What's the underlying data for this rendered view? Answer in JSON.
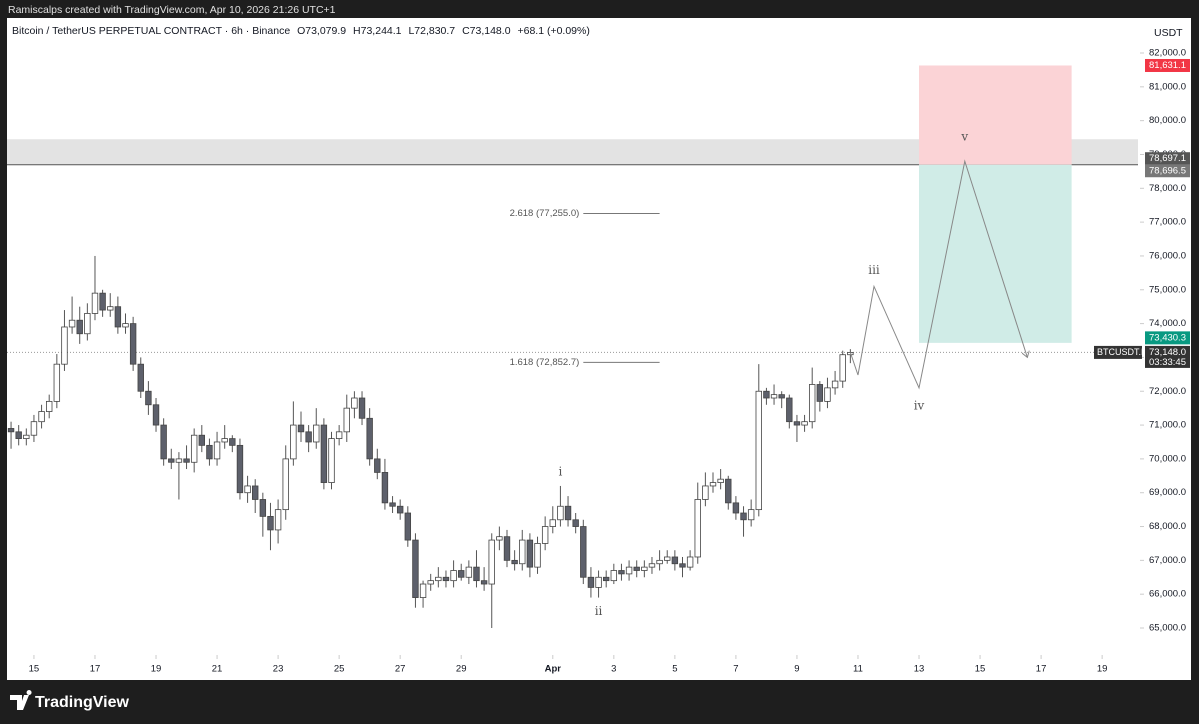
{
  "header": {
    "watermark": "Ramiscalps created with TradingView.com, Apr 10, 2026 21:26 UTC+1"
  },
  "footer": {
    "brand": "TradingView"
  },
  "chart_data": {
    "type": "candlestick",
    "title": "Bitcoin / TetherUS PERPETUAL CONTRACT · 6h · Binance",
    "ohlc_labels": [
      "O73,079.9",
      "H73,244.1",
      "L72,830.7",
      "C73,148.0",
      "+68.1 (+0.09%)"
    ],
    "currency": "USDT",
    "open": [
      70900,
      70800,
      70600,
      70700,
      71100,
      71400,
      71700,
      72800,
      73900,
      74100,
      73700,
      74300,
      74900,
      74400,
      74500,
      73900,
      74000,
      72800,
      72000,
      71600,
      71000,
      70000,
      69900,
      70000,
      69900,
      70700,
      70400,
      70000,
      70500,
      70600,
      70400,
      69000,
      69200,
      68800,
      68300,
      67900,
      68500,
      70000,
      71000,
      70800,
      70500,
      71000,
      69300,
      70600,
      70800,
      71500,
      71800,
      71200,
      70000,
      69600,
      68700,
      68600,
      68400,
      67600,
      65900,
      66300,
      66400,
      66500,
      66400,
      66700,
      66500,
      66800,
      66400,
      66300,
      67600,
      67700,
      67000,
      66900,
      67600,
      66800,
      67500,
      68000,
      68200,
      68600,
      68200,
      68000,
      66500,
      66200,
      66500,
      66400,
      66700,
      66600,
      66800,
      66700,
      66800,
      66900,
      67000,
      67100,
      66900,
      66800,
      67100,
      68800,
      69200,
      69300,
      69400,
      68700,
      68400,
      68200,
      68500,
      72000,
      71800,
      71900,
      71800,
      71100,
      71000,
      71100,
      72200,
      71700,
      72100,
      72300,
      73079.9
    ],
    "high": [
      71100,
      71000,
      70900,
      71300,
      71600,
      71900,
      73100,
      74400,
      74800,
      74500,
      74600,
      76000,
      75000,
      74900,
      74800,
      74300,
      74200,
      73000,
      72300,
      71800,
      71200,
      70300,
      70200,
      70400,
      70900,
      71000,
      70600,
      70800,
      71000,
      70700,
      70600,
      69500,
      69400,
      69000,
      68700,
      68800,
      70400,
      71700,
      71400,
      71000,
      71500,
      71200,
      70800,
      71000,
      71900,
      72000,
      72000,
      71500,
      70300,
      70000,
      68900,
      68800,
      68600,
      67800,
      66400,
      66600,
      66800,
      66700,
      67000,
      66900,
      67000,
      67300,
      66800,
      67800,
      68000,
      67900,
      67300,
      67900,
      67800,
      67700,
      68300,
      68600,
      69200,
      68900,
      68400,
      68200,
      66800,
      66700,
      66700,
      66900,
      66900,
      67000,
      67000,
      67000,
      67100,
      67300,
      67300,
      67300,
      67100,
      67300,
      69300,
      69600,
      69600,
      69700,
      69500,
      68900,
      68600,
      68800,
      72800,
      72100,
      72200,
      72000,
      71900,
      71300,
      71300,
      72700,
      72300,
      72400,
      72600,
      73200,
      73244.1
    ],
    "low": [
      70300,
      70400,
      70400,
      70500,
      70900,
      71200,
      71500,
      72600,
      73700,
      73400,
      73500,
      74100,
      74200,
      74200,
      73700,
      73700,
      72600,
      71800,
      71300,
      70800,
      69800,
      69700,
      68800,
      69700,
      69600,
      70200,
      69800,
      69800,
      70300,
      70200,
      68800,
      68700,
      68400,
      67700,
      67300,
      67500,
      68200,
      69800,
      70500,
      70200,
      70300,
      69100,
      69100,
      70400,
      70500,
      71200,
      71000,
      69800,
      69400,
      68500,
      68400,
      68200,
      67400,
      65600,
      65600,
      66100,
      66200,
      66200,
      66200,
      66400,
      66300,
      66200,
      66100,
      65000,
      67300,
      66800,
      66700,
      66700,
      66500,
      66600,
      67300,
      67800,
      68000,
      68000,
      67800,
      66300,
      65900,
      65900,
      66200,
      66300,
      66400,
      66400,
      66500,
      66500,
      66600,
      66700,
      66900,
      66700,
      66500,
      66700,
      66900,
      68600,
      69000,
      69100,
      68500,
      68200,
      67700,
      68000,
      68300,
      71600,
      71600,
      71500,
      70900,
      70500,
      70800,
      70900,
      71400,
      71500,
      71900,
      72100,
      72830.7
    ],
    "close": [
      70800,
      70600,
      70700,
      71100,
      71400,
      71700,
      72800,
      73900,
      74100,
      73700,
      74300,
      74900,
      74400,
      74500,
      73900,
      74000,
      72800,
      72000,
      71600,
      71000,
      70000,
      69900,
      70000,
      69900,
      70700,
      70400,
      70000,
      70500,
      70600,
      70400,
      69000,
      69200,
      68800,
      68300,
      67900,
      68500,
      70000,
      71000,
      70800,
      70500,
      71000,
      69300,
      70600,
      70800,
      71500,
      71800,
      71200,
      70000,
      69600,
      68700,
      68600,
      68400,
      67600,
      65900,
      66300,
      66400,
      66500,
      66400,
      66700,
      66500,
      66800,
      66400,
      66300,
      67600,
      67700,
      67000,
      66900,
      67600,
      66800,
      67500,
      68000,
      68200,
      68600,
      68200,
      68000,
      66500,
      66200,
      66500,
      66400,
      66700,
      66600,
      66800,
      66700,
      66800,
      66900,
      67000,
      67100,
      66900,
      66800,
      67100,
      68800,
      69200,
      69300,
      69400,
      68700,
      68400,
      68200,
      68500,
      72000,
      71800,
      71900,
      71800,
      71100,
      71000,
      71100,
      72200,
      71700,
      72100,
      72300,
      73079.9,
      73148
    ],
    "up_color": "#ffffff",
    "down_color": "#5d606b",
    "xlim": [
      -0.4,
      147.7
    ],
    "xticks": [
      {
        "value": 3,
        "label": "15"
      },
      {
        "value": 11,
        "label": "17"
      },
      {
        "value": 19,
        "label": "19"
      },
      {
        "value": 27,
        "label": "21"
      },
      {
        "value": 35,
        "label": "23"
      },
      {
        "value": 43,
        "label": "25"
      },
      {
        "value": 51,
        "label": "27"
      },
      {
        "value": 59,
        "label": "29"
      },
      {
        "value": 71,
        "label": "Apr"
      },
      {
        "value": 79,
        "label": "3"
      },
      {
        "value": 87,
        "label": "5"
      },
      {
        "value": 95,
        "label": "7"
      },
      {
        "value": 103,
        "label": "9"
      },
      {
        "value": 111,
        "label": "11"
      },
      {
        "value": 119,
        "label": "13"
      },
      {
        "value": 127,
        "label": "15"
      },
      {
        "value": 135,
        "label": "17"
      },
      {
        "value": 143,
        "label": "19"
      }
    ],
    "ylim": [
      64202,
      83035
    ],
    "yticks": [
      {
        "value": 65000,
        "label": "65,000.0"
      },
      {
        "value": 66000,
        "label": "66,000.0"
      },
      {
        "value": 67000,
        "label": "67,000.0"
      },
      {
        "value": 68000,
        "label": "68,000.0"
      },
      {
        "value": 69000,
        "label": "69,000.0"
      },
      {
        "value": 70000,
        "label": "70,000.0"
      },
      {
        "value": 71000,
        "label": "71,000.0"
      },
      {
        "value": 72000,
        "label": "72,000.0"
      },
      {
        "value": 73000,
        "label": "73,000.0"
      },
      {
        "value": 74000,
        "label": "74,000.0"
      },
      {
        "value": 75000,
        "label": "75,000.0"
      },
      {
        "value": 76000,
        "label": "76,000.0"
      },
      {
        "value": 77000,
        "label": "77,000.0"
      },
      {
        "value": 78000,
        "label": "78,000.0"
      },
      {
        "value": 79000,
        "label": "79,000.0"
      },
      {
        "value": 80000,
        "label": "80,000.0"
      },
      {
        "value": 81000,
        "label": "81,000.0"
      },
      {
        "value": 82000,
        "label": "82,000.0"
      }
    ],
    "fib_levels": [
      {
        "value": 77255,
        "label": "2.618 (77,255.0)"
      },
      {
        "value": 72852.7,
        "label": "1.618 (72,852.7)"
      }
    ],
    "zone": {
      "top": 79450,
      "bottom": 78697.1,
      "bottom_label": "78,697.1"
    },
    "position": {
      "stop": 81631.1,
      "stop_label": "81,631.1",
      "entry": 78696.5,
      "entry_label": "78,696.5",
      "target": 73430.3,
      "target_label": "73,430.3",
      "start": 119,
      "end": 139
    },
    "projection": {
      "x": [
        110,
        111,
        113.1,
        119,
        125,
        133.2
      ],
      "y": [
        73148,
        72480,
        75100,
        72100,
        78800,
        73000
      ]
    },
    "wave_labels": [
      "i",
      "ii",
      "iii",
      "iv",
      "v"
    ],
    "last_price": {
      "symbol": "BTCUSDT.P",
      "label": "73,148.0",
      "countdown": "03:33:45"
    }
  }
}
